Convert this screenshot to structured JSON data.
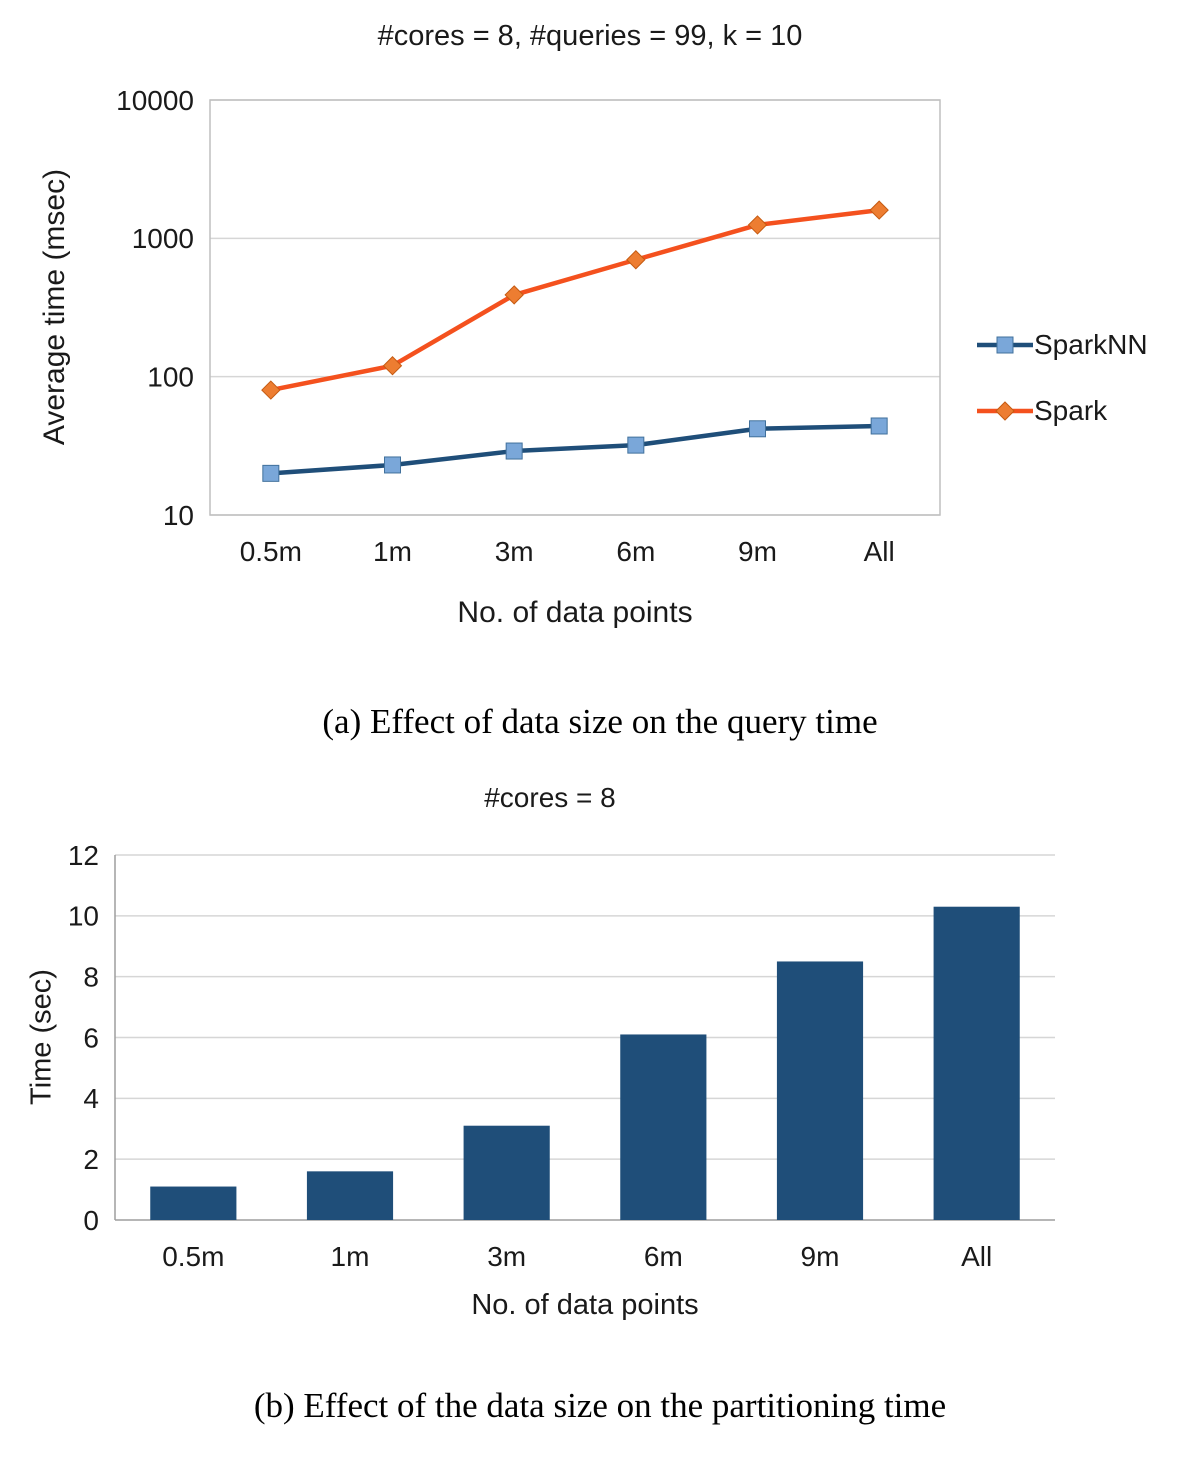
{
  "captions": {
    "a": "(a) Effect of data size on the query time",
    "b": "(b) Effect of the data size on the partitioning time"
  },
  "style": {
    "grid_color": "#d6d6d6",
    "axis_color": "#bfbfbf",
    "axis_strong_color": "#9e9e9e",
    "text_color": "#1a1a1a",
    "background": "#ffffff"
  },
  "chart_data": [
    {
      "type": "line",
      "title": "#cores = 8, #queries = 99, k = 10",
      "xlabel": "No. of data points",
      "ylabel": "Average time (msec)",
      "categories": [
        "0.5m",
        "1m",
        "3m",
        "6m",
        "9m",
        "All"
      ],
      "y_scale": "log",
      "ylim": [
        10,
        10000
      ],
      "y_ticks": [
        10,
        100,
        1000,
        10000
      ],
      "y_tick_labels": [
        "10",
        "100",
        "1000",
        "10000"
      ],
      "grid": true,
      "legend_position": "right",
      "series": [
        {
          "name": "SparkNN",
          "marker": "square",
          "line_color": "#1f4e79",
          "marker_color": "#7aa7d9",
          "marker_stroke": "#41719c",
          "values": [
            20,
            23,
            29,
            32,
            42,
            44
          ]
        },
        {
          "name": "Spark",
          "marker": "diamond",
          "line_color": "#f4511e",
          "marker_color": "#ed7d31",
          "marker_stroke": "#c55a11",
          "values": [
            80,
            120,
            390,
            700,
            1250,
            1600
          ]
        }
      ]
    },
    {
      "type": "bar",
      "title": "#cores = 8",
      "xlabel": "No. of data points",
      "ylabel": "Time (sec)",
      "categories": [
        "0.5m",
        "1m",
        "3m",
        "6m",
        "9m",
        "All"
      ],
      "y_scale": "linear",
      "ylim": [
        0,
        12
      ],
      "y_ticks": [
        0,
        2,
        4,
        6,
        8,
        10,
        12
      ],
      "grid": true,
      "bar_color": "#1f4e79",
      "values": [
        1.1,
        1.6,
        3.1,
        6.1,
        8.5,
        10.3
      ]
    }
  ]
}
